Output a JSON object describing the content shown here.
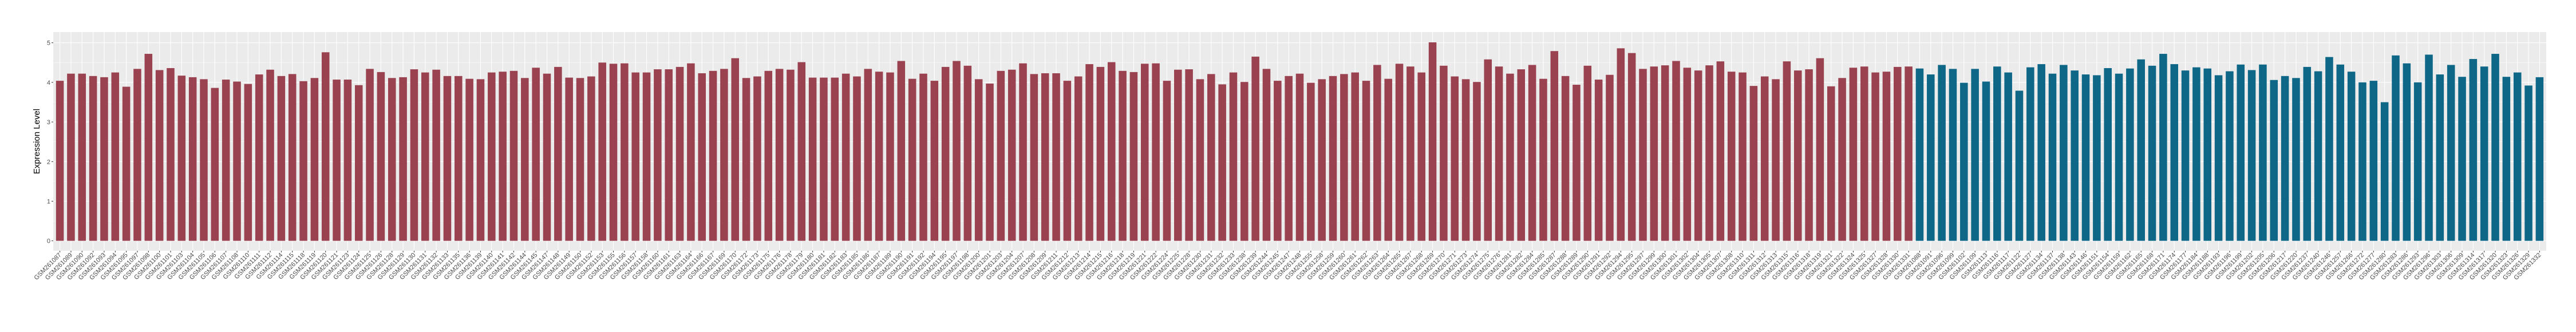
{
  "chart_data": {
    "type": "bar",
    "title": "",
    "xlabel": "",
    "ylabel": "Expression Level",
    "ylim": [
      -0.25,
      5.27
    ],
    "yticks": [
      "0",
      "1",
      "2",
      "3",
      "4",
      "5"
    ],
    "grid": true,
    "legend": "none",
    "series": [
      {
        "color": "#9a4250",
        "categories": [
          "GSM261087",
          "GSM261089",
          "GSM261090",
          "GSM261092",
          "GSM261093",
          "GSM261094",
          "GSM261095",
          "GSM261097",
          "GSM261098",
          "GSM261100",
          "GSM261101",
          "GSM261103",
          "GSM261104",
          "GSM261105",
          "GSM261106",
          "GSM261107",
          "GSM261108",
          "GSM261110",
          "GSM261111",
          "GSM261112",
          "GSM261114",
          "GSM261115",
          "GSM261118",
          "GSM261119",
          "GSM261120",
          "GSM261121",
          "GSM261123",
          "GSM261124",
          "GSM261125",
          "GSM261126",
          "GSM261128",
          "GSM261129",
          "GSM261130",
          "GSM261131",
          "GSM261132",
          "GSM261133",
          "GSM261135",
          "GSM261136",
          "GSM261139",
          "GSM261140",
          "GSM261141",
          "GSM261142",
          "GSM261144",
          "GSM261145",
          "GSM261147",
          "GSM261148",
          "GSM261149",
          "GSM261150",
          "GSM261152",
          "GSM261153",
          "GSM261155",
          "GSM261156",
          "GSM261157",
          "GSM261158",
          "GSM261160",
          "GSM261161",
          "GSM261163",
          "GSM261164",
          "GSM261166",
          "GSM261167",
          "GSM261169",
          "GSM261170",
          "GSM261172",
          "GSM261173",
          "GSM261175",
          "GSM261176",
          "GSM261178",
          "GSM261179",
          "GSM261180",
          "GSM261181",
          "GSM261182",
          "GSM261183",
          "GSM261185",
          "GSM261186",
          "GSM261187",
          "GSM261189",
          "GSM261190",
          "GSM261191",
          "GSM261192",
          "GSM261194",
          "GSM261195",
          "GSM261197",
          "GSM261198",
          "GSM261200",
          "GSM261201",
          "GSM261203",
          "GSM261204",
          "GSM261207",
          "GSM261208",
          "GSM261209",
          "GSM261211",
          "GSM261212",
          "GSM261213",
          "GSM261214",
          "GSM261215",
          "GSM261216",
          "GSM261218",
          "GSM261219",
          "GSM261221",
          "GSM261222",
          "GSM261224",
          "GSM261225",
          "GSM261228",
          "GSM261230",
          "GSM261231",
          "GSM261232",
          "GSM261233",
          "GSM261238",
          "GSM261239",
          "GSM261244",
          "GSM261245",
          "GSM261247",
          "GSM261248",
          "GSM261255",
          "GSM261258",
          "GSM261259",
          "GSM261260",
          "GSM261261",
          "GSM261262",
          "GSM261263",
          "GSM261264",
          "GSM261265",
          "GSM261267",
          "GSM261268",
          "GSM261269",
          "GSM261270",
          "GSM261271",
          "GSM261273",
          "GSM261274",
          "GSM261275",
          "GSM261276",
          "GSM261281",
          "GSM261282",
          "GSM261284",
          "GSM261285",
          "GSM261287",
          "GSM261288",
          "GSM261289",
          "GSM261290",
          "GSM261291",
          "GSM261292",
          "GSM261294",
          "GSM261295",
          "GSM261297",
          "GSM261299",
          "GSM261300",
          "GSM261301",
          "GSM261302",
          "GSM261304",
          "GSM261305",
          "GSM261307",
          "GSM261308",
          "GSM261310",
          "GSM261311",
          "GSM261312",
          "GSM261313",
          "GSM261315",
          "GSM261316",
          "GSM261318",
          "GSM261319",
          "GSM261321",
          "GSM261322",
          "GSM261324",
          "GSM261325",
          "GSM261327",
          "GSM261328",
          "GSM261330",
          "GSM261331"
        ],
        "values": [
          4.04,
          4.22,
          4.22,
          4.16,
          4.13,
          4.25,
          3.89,
          4.34,
          4.72,
          4.31,
          4.36,
          4.17,
          4.13,
          4.08,
          3.86,
          4.07,
          4.02,
          3.96,
          4.2,
          4.32,
          4.16,
          4.21,
          4.03,
          4.11,
          4.76,
          4.07,
          4.07,
          3.93,
          4.34,
          4.26,
          4.11,
          4.13,
          4.33,
          4.25,
          4.32,
          4.16,
          4.16,
          4.09,
          4.08,
          4.25,
          4.27,
          4.29,
          4.11,
          4.37,
          4.22,
          4.39,
          4.12,
          4.11,
          4.15,
          4.5,
          4.47,
          4.48,
          4.25,
          4.25,
          4.33,
          4.33,
          4.39,
          4.48,
          4.23,
          4.29,
          4.34,
          4.61,
          4.11,
          4.15,
          4.29,
          4.34,
          4.32,
          4.51,
          4.12,
          4.12,
          4.12,
          4.22,
          4.15,
          4.34,
          4.27,
          4.25,
          4.54,
          4.09,
          4.22,
          4.04,
          4.39,
          4.54,
          4.42,
          4.08,
          3.97,
          4.29,
          4.32,
          4.48,
          4.21,
          4.23,
          4.23,
          4.04,
          4.15,
          4.46,
          4.39,
          4.51,
          4.29,
          4.26,
          4.47,
          4.48,
          4.04,
          4.32,
          4.33,
          4.08,
          4.21,
          3.95,
          4.25,
          4.01,
          4.65,
          4.34,
          4.04,
          4.16,
          4.22,
          3.99,
          4.08,
          4.16,
          4.21,
          4.25,
          4.04,
          4.44,
          4.09,
          4.47,
          4.4,
          4.25,
          5.01,
          4.42,
          4.15,
          4.08,
          4.01,
          4.58,
          4.4,
          4.22,
          4.33,
          4.44,
          4.09,
          4.79,
          4.16,
          3.94,
          4.42,
          4.07,
          4.19,
          4.86,
          4.74,
          4.34,
          4.4,
          4.43,
          4.54,
          4.37,
          4.3,
          4.43,
          4.53,
          4.27,
          4.25,
          3.91,
          4.15,
          4.08,
          4.53,
          4.3,
          4.33,
          4.61,
          3.9,
          4.11,
          4.37,
          4.4,
          4.25,
          4.27,
          4.39,
          4.4
        ]
      },
      {
        "color": "#0e6787",
        "categories": [
          "GSM261088",
          "GSM261091",
          "GSM261096",
          "GSM261099",
          "GSM261102",
          "GSM261109",
          "GSM261113",
          "GSM261116",
          "GSM261117",
          "GSM261122",
          "GSM261127",
          "GSM261134",
          "GSM261137",
          "GSM261138",
          "GSM261143",
          "GSM261146",
          "GSM261151",
          "GSM261154",
          "GSM261159",
          "GSM261162",
          "GSM261165",
          "GSM261168",
          "GSM261171",
          "GSM261174",
          "GSM261177",
          "GSM261184",
          "GSM261188",
          "GSM261193",
          "GSM261196",
          "GSM261199",
          "GSM261202",
          "GSM261205",
          "GSM261206",
          "GSM261217",
          "GSM261220",
          "GSM261237",
          "GSM261240",
          "GSM261246",
          "GSM261257",
          "GSM261266",
          "GSM261272",
          "GSM261277",
          "GSM261280",
          "GSM261283",
          "GSM261286",
          "GSM261293",
          "GSM261296",
          "GSM261303",
          "GSM261306",
          "GSM261309",
          "GSM261314",
          "GSM261317",
          "GSM261320",
          "GSM261323",
          "GSM261326",
          "GSM261329",
          "GSM261332"
        ],
        "values": [
          4.35,
          4.2,
          4.44,
          4.34,
          3.99,
          4.34,
          4.02,
          4.4,
          4.25,
          3.79,
          4.38,
          4.46,
          4.22,
          4.44,
          4.3,
          4.2,
          4.18,
          4.36,
          4.22,
          4.35,
          4.58,
          4.42,
          4.72,
          4.46,
          4.3,
          4.38,
          4.35,
          4.18,
          4.28,
          4.45,
          4.31,
          4.45,
          4.06,
          4.16,
          4.11,
          4.39,
          4.28,
          4.64,
          4.45,
          4.27,
          4.0,
          4.04,
          3.5,
          4.68,
          4.48,
          4.0,
          4.7,
          4.2,
          4.44,
          4.14,
          4.59,
          4.4,
          4.72,
          4.14,
          4.25,
          3.92,
          4.13
        ]
      }
    ]
  }
}
